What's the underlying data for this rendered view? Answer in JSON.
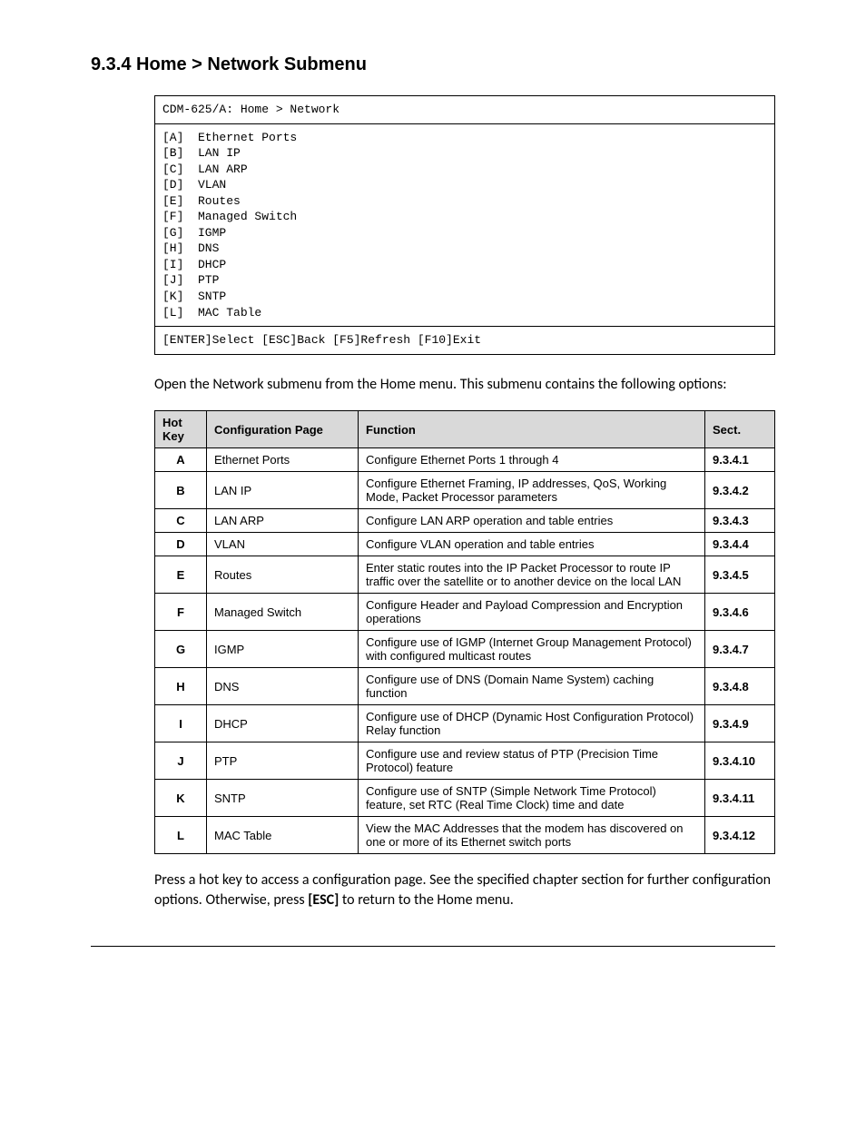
{
  "heading": "9.3.4  Home > Network Submenu",
  "terminal": {
    "header": "CDM-625/A: Home > Network",
    "menu": "[A]  Ethernet Ports\n[B]  LAN IP\n[C]  LAN ARP\n[D]  VLAN\n[E]  Routes\n[F]  Managed Switch\n[G]  IGMP\n[H]  DNS\n[I]  DHCP\n[J]  PTP\n[K]  SNTP\n[L]  MAC Table",
    "footer": "[ENTER]Select [ESC]Back [F5]Refresh [F10]Exit"
  },
  "intro": "Open the Network submenu from the Home menu. This submenu contains the following options:",
  "table": {
    "headers": {
      "hotkey": "Hot Key",
      "page": "Configuration Page",
      "func": "Function",
      "sect": "Sect."
    },
    "rows": [
      {
        "k": "A",
        "p": "Ethernet Ports",
        "f": "Configure Ethernet Ports 1 through 4",
        "s": "9.3.4.1"
      },
      {
        "k": "B",
        "p": "LAN IP",
        "f": "Configure Ethernet Framing, IP addresses, QoS, Working Mode, Packet Processor parameters",
        "s": "9.3.4.2"
      },
      {
        "k": "C",
        "p": "LAN ARP",
        "f": "Configure LAN ARP operation and table entries",
        "s": "9.3.4.3"
      },
      {
        "k": "D",
        "p": "VLAN",
        "f": "Configure VLAN operation and table entries",
        "s": "9.3.4.4"
      },
      {
        "k": "E",
        "p": "Routes",
        "f": "Enter static routes into the IP Packet Processor to route IP traffic over the satellite or to another device on the local LAN",
        "s": "9.3.4.5"
      },
      {
        "k": "F",
        "p": "Managed Switch",
        "f": "Configure Header and Payload Compression and Encryption operations",
        "s": "9.3.4.6"
      },
      {
        "k": "G",
        "p": "IGMP",
        "f": "Configure use of IGMP (Internet Group Management Protocol) with configured multicast routes",
        "s": "9.3.4.7"
      },
      {
        "k": "H",
        "p": "DNS",
        "f": "Configure use of DNS (Domain Name System) caching function",
        "s": "9.3.4.8"
      },
      {
        "k": "I",
        "p": "DHCP",
        "f": "Configure use of DHCP (Dynamic Host Configuration Protocol) Relay function",
        "s": "9.3.4.9"
      },
      {
        "k": "J",
        "p": "PTP",
        "f": "Configure use and review status of PTP (Precision Time Protocol) feature",
        "s": "9.3.4.10"
      },
      {
        "k": "K",
        "p": "SNTP",
        "f": "Configure use of SNTP (Simple Network Time Protocol) feature, set RTC (Real Time Clock) time and date",
        "s": "9.3.4.11"
      },
      {
        "k": "L",
        "p": "MAC Table",
        "f": "View the MAC Addresses that the modem has discovered on one or more of its Ethernet switch ports",
        "s": "9.3.4.12"
      }
    ]
  },
  "closing_pre": "Press a hot key to access a configuration page. See the specified chapter section for further configuration options. Otherwise, press ",
  "closing_bold": "[ESC]",
  "closing_post": " to return to the Home menu."
}
